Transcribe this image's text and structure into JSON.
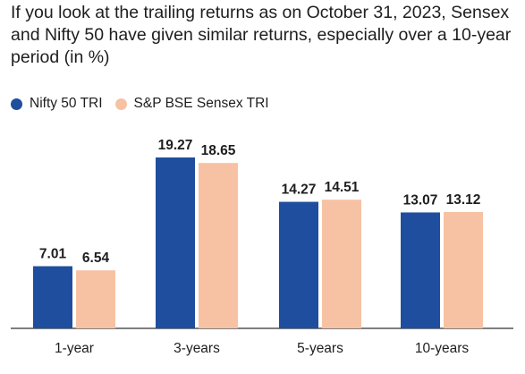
{
  "chart_data": {
    "type": "bar",
    "subtitle": "If you look at the trailing returns as on October 31, 2023, Sensex and Nifty 50 have given similar returns, especially over a 10-year period (in %)",
    "categories": [
      "1-year",
      "3-years",
      "5-years",
      "10-years"
    ],
    "series": [
      {
        "name": "Nifty 50 TRI",
        "color": "#1f4e9e",
        "values": [
          7.01,
          19.27,
          14.27,
          13.07
        ]
      },
      {
        "name": "S&P BSE Sensex TRI",
        "color": "#f7c2a3",
        "values": [
          6.54,
          18.65,
          14.51,
          13.12
        ]
      }
    ],
    "ylim": [
      0,
      22
    ],
    "grid": false,
    "legend_position": "top-left",
    "value_labels": [
      "7.01",
      "6.54",
      "19.27",
      "18.65",
      "14.27",
      "14.51",
      "13.07",
      "13.12"
    ],
    "axis_color": "#333333"
  }
}
